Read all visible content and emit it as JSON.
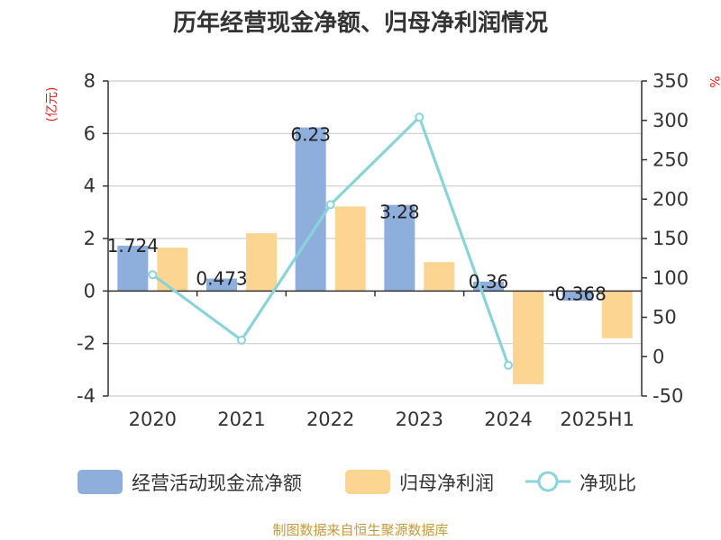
{
  "title": "历年经营现金净额、归母净利润情况",
  "source_text": "制图数据来自恒生聚源数据库",
  "chart_data": {
    "type": "bar",
    "title": "历年经营现金净额、归母净利润情况",
    "categories": [
      "2020",
      "2021",
      "2022",
      "2023",
      "2024",
      "2025H1"
    ],
    "left_axis": {
      "unit": "(亿元)",
      "ylim": [
        -4,
        8
      ],
      "ticks": [
        "8",
        "6",
        "4",
        "2",
        "0",
        "-2",
        "-4"
      ]
    },
    "right_axis": {
      "unit": "%",
      "ylim": [
        -50,
        350
      ],
      "ticks": [
        "350",
        "300",
        "250",
        "200",
        "150",
        "100",
        "50",
        "0",
        "-50"
      ]
    },
    "grid": true,
    "legend_position": "bottom",
    "series": [
      {
        "name": "经营活动现金流净额",
        "type": "bar",
        "axis": "left",
        "color": "#8eaedb",
        "values": [
          1.724,
          0.473,
          6.23,
          3.28,
          0.36,
          -0.368
        ],
        "labels": [
          "1.724",
          "0.473",
          "6.23",
          "3.28",
          "0.36",
          "-0.368"
        ]
      },
      {
        "name": "归母净利润",
        "type": "bar",
        "axis": "left",
        "color": "#fcd592",
        "values": [
          1.65,
          2.2,
          3.22,
          1.1,
          -3.55,
          -1.8
        ]
      },
      {
        "name": "净现比",
        "type": "line",
        "axis": "right",
        "color": "#8ad4d9",
        "values": [
          104,
          21,
          193,
          304,
          -11,
          null
        ]
      }
    ]
  }
}
